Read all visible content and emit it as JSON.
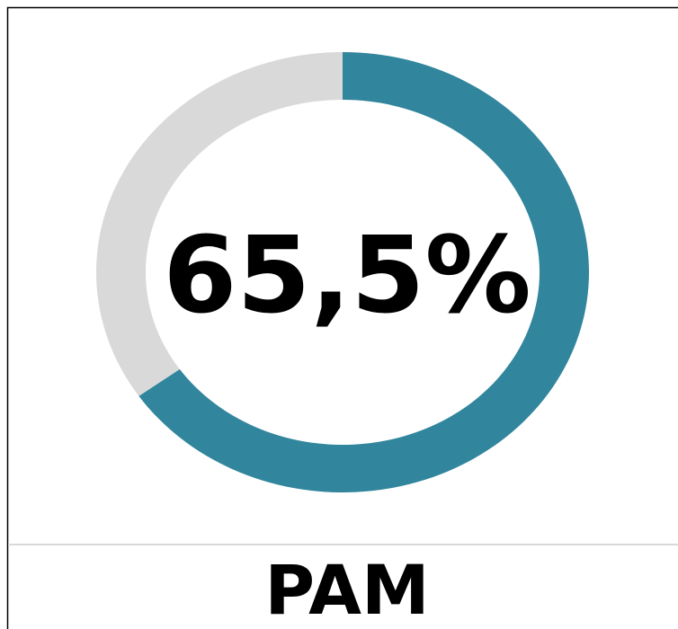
{
  "chart_data": {
    "type": "donut",
    "title": "PAM",
    "values": [
      65.5,
      34.5
    ],
    "value_labels": [
      "65,5%",
      null
    ],
    "colors": [
      "#31859c",
      "#d9d9d9"
    ]
  }
}
